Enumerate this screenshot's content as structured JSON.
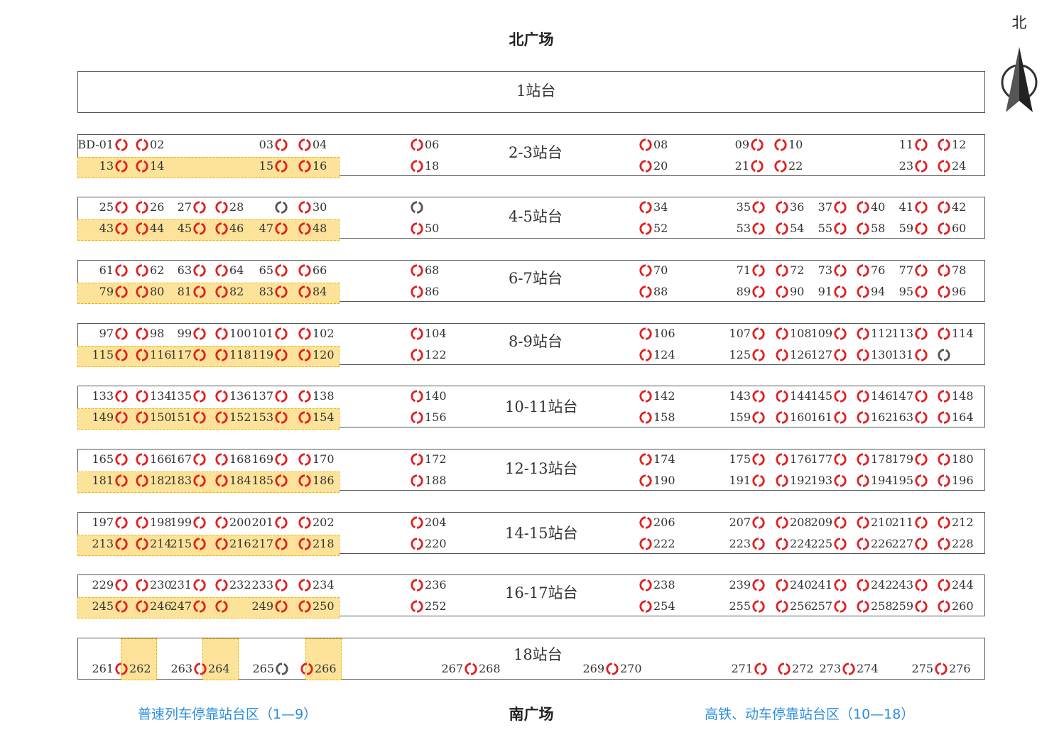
{
  "north_plaza": "北广场",
  "south_plaza": "南广场",
  "compass_label": "北",
  "legend_left": "普速列车停靠站台区（1—9）",
  "legend_right": "高铁、动车停靠站台区（10—18）",
  "colors": {
    "ring_red": "#e02020",
    "ring_gray": "#555555",
    "highlight": "#fde39a",
    "legend_blue": "#2a8ddc"
  },
  "platforms": [
    {
      "name": "1站台",
      "rows": []
    },
    {
      "name": "2-3站台",
      "rows": [
        [
          [
            "BD-01",
            ""
          ],
          [
            "",
            "02"
          ],
          [
            "03",
            ""
          ],
          [
            "",
            "04"
          ],
          [
            "",
            "06"
          ],
          [
            "",
            "08"
          ],
          [
            "09",
            ""
          ],
          [
            "",
            "10"
          ],
          [
            "11",
            ""
          ],
          [
            "",
            "12"
          ]
        ],
        [
          [
            "13",
            ""
          ],
          [
            "",
            "14"
          ],
          [
            "15",
            ""
          ],
          [
            "",
            "16"
          ],
          [
            "",
            "18"
          ],
          [
            "",
            "20"
          ],
          [
            "21",
            ""
          ],
          [
            "",
            "22"
          ],
          [
            "23",
            ""
          ],
          [
            "",
            "24"
          ]
        ]
      ]
    },
    {
      "name": "4-5站台",
      "rows": [
        [
          [
            "25",
            ""
          ],
          [
            "",
            "26"
          ],
          [
            "27",
            ""
          ],
          [
            "",
            "28"
          ],
          [
            "",
            ""
          ],
          [
            "",
            "30"
          ],
          [
            "",
            ""
          ],
          [
            "",
            "34"
          ],
          [
            "35",
            ""
          ],
          [
            "",
            "36"
          ],
          [
            "37",
            ""
          ],
          [
            "",
            "40"
          ],
          [
            "41",
            ""
          ],
          [
            "",
            "42"
          ]
        ],
        [
          [
            "43",
            ""
          ],
          [
            "",
            "44"
          ],
          [
            "45",
            ""
          ],
          [
            "",
            "46"
          ],
          [
            "47",
            ""
          ],
          [
            "",
            "48"
          ],
          [
            "",
            "50"
          ],
          [
            "",
            "52"
          ],
          [
            "53",
            ""
          ],
          [
            "",
            "54"
          ],
          [
            "55",
            ""
          ],
          [
            "",
            "58"
          ],
          [
            "59",
            ""
          ],
          [
            "",
            "60"
          ]
        ]
      ]
    },
    {
      "name": "6-7站台",
      "rows": [
        [
          [
            "61",
            ""
          ],
          [
            "",
            "62"
          ],
          [
            "63",
            ""
          ],
          [
            "",
            "64"
          ],
          [
            "65",
            ""
          ],
          [
            "",
            "66"
          ],
          [
            "",
            "68"
          ],
          [
            "",
            "70"
          ],
          [
            "71",
            ""
          ],
          [
            "",
            "72"
          ],
          [
            "73",
            ""
          ],
          [
            "",
            "76"
          ],
          [
            "77",
            ""
          ],
          [
            "",
            "78"
          ]
        ],
        [
          [
            "79",
            ""
          ],
          [
            "",
            "80"
          ],
          [
            "81",
            ""
          ],
          [
            "",
            "82"
          ],
          [
            "83",
            ""
          ],
          [
            "",
            "84"
          ],
          [
            "",
            "86"
          ],
          [
            "",
            "88"
          ],
          [
            "89",
            ""
          ],
          [
            "",
            "90"
          ],
          [
            "91",
            ""
          ],
          [
            "",
            "94"
          ],
          [
            "95",
            ""
          ],
          [
            "",
            "96"
          ]
        ]
      ]
    },
    {
      "name": "8-9站台",
      "rows": [
        [
          [
            "97",
            ""
          ],
          [
            "",
            "98"
          ],
          [
            "99",
            ""
          ],
          [
            "",
            "100"
          ],
          [
            "101",
            ""
          ],
          [
            "",
            "102"
          ],
          [
            "",
            "104"
          ],
          [
            "",
            "106"
          ],
          [
            "107",
            ""
          ],
          [
            "",
            "108"
          ],
          [
            "109",
            ""
          ],
          [
            "",
            "112"
          ],
          [
            "113",
            ""
          ],
          [
            "",
            "114"
          ]
        ],
        [
          [
            "115",
            ""
          ],
          [
            "",
            "116"
          ],
          [
            "117",
            ""
          ],
          [
            "",
            "118"
          ],
          [
            "119",
            ""
          ],
          [
            "",
            "120"
          ],
          [
            "",
            "122"
          ],
          [
            "",
            "124"
          ],
          [
            "125",
            ""
          ],
          [
            "",
            "126"
          ],
          [
            "127",
            ""
          ],
          [
            "",
            "130"
          ],
          [
            "131",
            ""
          ],
          [
            "",
            ""
          ]
        ]
      ]
    },
    {
      "name": "10-11站台",
      "rows": [
        [
          [
            "133",
            ""
          ],
          [
            "",
            "134"
          ],
          [
            "135",
            ""
          ],
          [
            "",
            "136"
          ],
          [
            "137",
            ""
          ],
          [
            "",
            "138"
          ],
          [
            "",
            "140"
          ],
          [
            "",
            "142"
          ],
          [
            "143",
            ""
          ],
          [
            "",
            "144"
          ],
          [
            "145",
            ""
          ],
          [
            "",
            "146"
          ],
          [
            "147",
            ""
          ],
          [
            "",
            "148"
          ]
        ],
        [
          [
            "149",
            ""
          ],
          [
            "",
            "150"
          ],
          [
            "151",
            ""
          ],
          [
            "",
            "152"
          ],
          [
            "153",
            ""
          ],
          [
            "",
            "154"
          ],
          [
            "",
            "156"
          ],
          [
            "",
            "158"
          ],
          [
            "159",
            ""
          ],
          [
            "",
            "160"
          ],
          [
            "161",
            ""
          ],
          [
            "",
            "162"
          ],
          [
            "163",
            ""
          ],
          [
            "",
            "164"
          ]
        ]
      ]
    },
    {
      "name": "12-13站台",
      "rows": [
        [
          [
            "165",
            ""
          ],
          [
            "",
            "166"
          ],
          [
            "167",
            ""
          ],
          [
            "",
            "168"
          ],
          [
            "169",
            ""
          ],
          [
            "",
            "170"
          ],
          [
            "",
            "172"
          ],
          [
            "",
            "174"
          ],
          [
            "175",
            ""
          ],
          [
            "",
            "176"
          ],
          [
            "177",
            ""
          ],
          [
            "",
            "178"
          ],
          [
            "179",
            ""
          ],
          [
            "",
            "180"
          ]
        ],
        [
          [
            "181",
            ""
          ],
          [
            "",
            "182"
          ],
          [
            "183",
            ""
          ],
          [
            "",
            "184"
          ],
          [
            "185",
            ""
          ],
          [
            "",
            "186"
          ],
          [
            "",
            "188"
          ],
          [
            "",
            "190"
          ],
          [
            "191",
            ""
          ],
          [
            "",
            "192"
          ],
          [
            "193",
            ""
          ],
          [
            "",
            "194"
          ],
          [
            "195",
            ""
          ],
          [
            "",
            "196"
          ]
        ]
      ]
    },
    {
      "name": "14-15站台",
      "rows": [
        [
          [
            "197",
            ""
          ],
          [
            "",
            "198"
          ],
          [
            "199",
            ""
          ],
          [
            "",
            "200"
          ],
          [
            "201",
            ""
          ],
          [
            "",
            "202"
          ],
          [
            "",
            "204"
          ],
          [
            "",
            "206"
          ],
          [
            "207",
            ""
          ],
          [
            "",
            "208"
          ],
          [
            "209",
            ""
          ],
          [
            "",
            "210"
          ],
          [
            "211",
            ""
          ],
          [
            "",
            "212"
          ]
        ],
        [
          [
            "213",
            ""
          ],
          [
            "",
            "214"
          ],
          [
            "215",
            ""
          ],
          [
            "",
            "216"
          ],
          [
            "217",
            ""
          ],
          [
            "",
            "218"
          ],
          [
            "",
            "220"
          ],
          [
            "",
            "222"
          ],
          [
            "223",
            ""
          ],
          [
            "",
            "224"
          ],
          [
            "225",
            ""
          ],
          [
            "",
            "226"
          ],
          [
            "227",
            ""
          ],
          [
            "",
            "228"
          ]
        ]
      ]
    },
    {
      "name": "16-17站台",
      "rows": [
        [
          [
            "229",
            ""
          ],
          [
            "",
            "230"
          ],
          [
            "231",
            ""
          ],
          [
            "",
            "232"
          ],
          [
            "233",
            ""
          ],
          [
            "",
            "234"
          ],
          [
            "",
            "236"
          ],
          [
            "",
            "238"
          ],
          [
            "239",
            ""
          ],
          [
            "",
            "240"
          ],
          [
            "241",
            ""
          ],
          [
            "",
            "242"
          ],
          [
            "243",
            ""
          ],
          [
            "",
            "244"
          ]
        ],
        [
          [
            "245",
            ""
          ],
          [
            "",
            "246"
          ],
          [
            "247",
            ""
          ],
          [
            "",
            ""
          ],
          [
            "249",
            ""
          ],
          [
            "",
            "250"
          ],
          [
            "",
            "252"
          ],
          [
            "",
            "254"
          ],
          [
            "255",
            ""
          ],
          [
            "",
            "256"
          ],
          [
            "257",
            ""
          ],
          [
            "",
            "258"
          ],
          [
            "259",
            ""
          ],
          [
            "",
            "260"
          ]
        ]
      ]
    },
    {
      "name": "18站台",
      "rows": [
        [
          [
            "261",
            ""
          ],
          [
            "",
            "262"
          ],
          [
            "263",
            ""
          ],
          [
            "",
            "264"
          ],
          [
            "265",
            ""
          ],
          [
            "",
            "266"
          ],
          [
            "267",
            ""
          ],
          [
            "",
            "268"
          ],
          [
            "269",
            ""
          ],
          [
            "",
            "270"
          ],
          [
            "271",
            ""
          ],
          [
            "",
            "272"
          ],
          [
            "273",
            ""
          ],
          [
            "",
            "274"
          ],
          [
            "275",
            ""
          ],
          [
            "",
            "276"
          ]
        ]
      ]
    }
  ]
}
